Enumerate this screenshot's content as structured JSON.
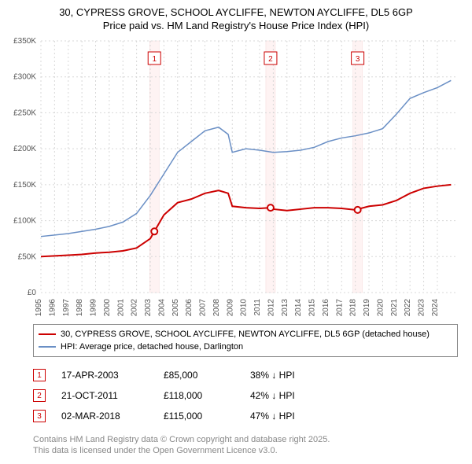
{
  "title_line1": "30, CYPRESS GROVE, SCHOOL AYCLIFFE, NEWTON AYCLIFFE, DL5 6GP",
  "title_line2": "Price paid vs. HM Land Registry's House Price Index (HPI)",
  "chart": {
    "type": "line",
    "x_years": [
      1995,
      1996,
      1997,
      1998,
      1999,
      2000,
      2001,
      2002,
      2003,
      2004,
      2005,
      2006,
      2007,
      2008,
      2009,
      2010,
      2011,
      2012,
      2013,
      2014,
      2015,
      2016,
      2017,
      2018,
      2019,
      2020,
      2021,
      2022,
      2023,
      2024
    ],
    "xlim": [
      1995,
      2025.5
    ],
    "ylim": [
      0,
      350000
    ],
    "ytick_step": 50000,
    "ytick_labels": [
      "£0",
      "£50K",
      "£100K",
      "£150K",
      "£200K",
      "£250K",
      "£300K",
      "£350K"
    ],
    "grid_color": "#d8d8d8",
    "grid_dash": "2,3",
    "background_color": "#ffffff",
    "axis_fontsize": 10,
    "axis_color": "#555",
    "series": {
      "subject": {
        "color": "#cc0000",
        "width": 2,
        "points": [
          [
            1995,
            50000
          ],
          [
            1996,
            51000
          ],
          [
            1997,
            52000
          ],
          [
            1998,
            53000
          ],
          [
            1999,
            55000
          ],
          [
            2000,
            56000
          ],
          [
            2001,
            58000
          ],
          [
            2002,
            62000
          ],
          [
            2003,
            75000
          ],
          [
            2003.3,
            85000
          ],
          [
            2004,
            108000
          ],
          [
            2005,
            125000
          ],
          [
            2006,
            130000
          ],
          [
            2007,
            138000
          ],
          [
            2008,
            142000
          ],
          [
            2008.7,
            138000
          ],
          [
            2009,
            120000
          ],
          [
            2010,
            118000
          ],
          [
            2011,
            117000
          ],
          [
            2011.8,
            118000
          ],
          [
            2012,
            116000
          ],
          [
            2013,
            114000
          ],
          [
            2014,
            116000
          ],
          [
            2015,
            118000
          ],
          [
            2016,
            118000
          ],
          [
            2017,
            117000
          ],
          [
            2018,
            115000
          ],
          [
            2019,
            120000
          ],
          [
            2020,
            122000
          ],
          [
            2021,
            128000
          ],
          [
            2022,
            138000
          ],
          [
            2023,
            145000
          ],
          [
            2024,
            148000
          ],
          [
            2025,
            150000
          ]
        ]
      },
      "hpi": {
        "color": "#6a8fc5",
        "width": 1.5,
        "points": [
          [
            1995,
            78000
          ],
          [
            1996,
            80000
          ],
          [
            1997,
            82000
          ],
          [
            1998,
            85000
          ],
          [
            1999,
            88000
          ],
          [
            2000,
            92000
          ],
          [
            2001,
            98000
          ],
          [
            2002,
            110000
          ],
          [
            2003,
            135000
          ],
          [
            2004,
            165000
          ],
          [
            2005,
            195000
          ],
          [
            2006,
            210000
          ],
          [
            2007,
            225000
          ],
          [
            2008,
            230000
          ],
          [
            2008.7,
            220000
          ],
          [
            2009,
            195000
          ],
          [
            2010,
            200000
          ],
          [
            2011,
            198000
          ],
          [
            2012,
            195000
          ],
          [
            2013,
            196000
          ],
          [
            2014,
            198000
          ],
          [
            2015,
            202000
          ],
          [
            2016,
            210000
          ],
          [
            2017,
            215000
          ],
          [
            2018,
            218000
          ],
          [
            2019,
            222000
          ],
          [
            2020,
            228000
          ],
          [
            2021,
            248000
          ],
          [
            2022,
            270000
          ],
          [
            2023,
            278000
          ],
          [
            2024,
            285000
          ],
          [
            2025,
            295000
          ]
        ]
      }
    },
    "sale_markers": [
      {
        "n": "1",
        "year": 2003.3,
        "value": 85000,
        "color": "#cc0000"
      },
      {
        "n": "2",
        "year": 2011.8,
        "value": 118000,
        "color": "#cc0000"
      },
      {
        "n": "3",
        "year": 2018.17,
        "value": 115000,
        "color": "#cc0000"
      }
    ],
    "vband_color": "#fef3f3",
    "vband_border": "#f5dada"
  },
  "legend": {
    "items": [
      {
        "color": "#cc0000",
        "width": 2,
        "label": "30, CYPRESS GROVE, SCHOOL AYCLIFFE, NEWTON AYCLIFFE, DL5 6GP (detached house)"
      },
      {
        "color": "#6a8fc5",
        "width": 1.5,
        "label": "HPI: Average price, detached house, Darlington"
      }
    ]
  },
  "events": [
    {
      "n": "1",
      "color": "#cc0000",
      "date": "17-APR-2003",
      "price": "£85,000",
      "diff": "38% ↓ HPI"
    },
    {
      "n": "2",
      "color": "#cc0000",
      "date": "21-OCT-2011",
      "price": "£118,000",
      "diff": "42% ↓ HPI"
    },
    {
      "n": "3",
      "color": "#cc0000",
      "date": "02-MAR-2018",
      "price": "£115,000",
      "diff": "47% ↓ HPI"
    }
  ],
  "footer": {
    "line1": "Contains HM Land Registry data © Crown copyright and database right 2025.",
    "line2": "This data is licensed under the Open Government Licence v3.0."
  }
}
